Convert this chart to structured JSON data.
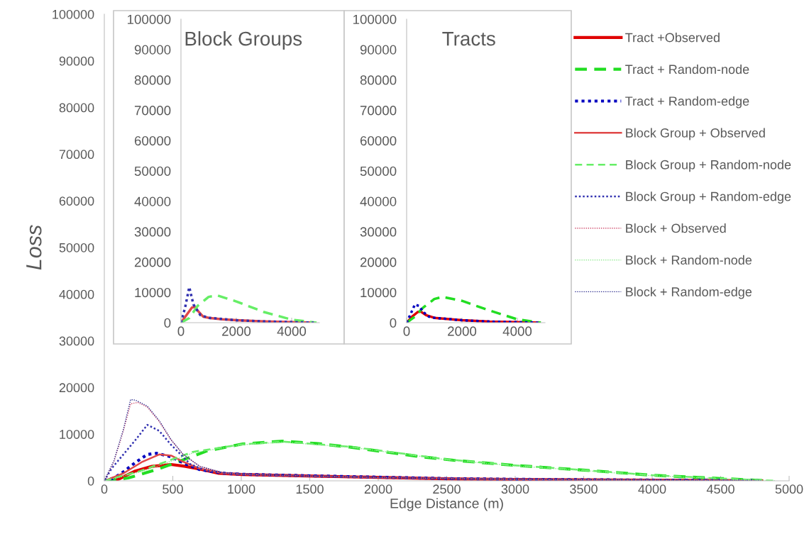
{
  "chart_data": [
    {
      "type": "line",
      "xlabel": "Edge Distance (m)",
      "ylabel": "Loss",
      "xlim": [
        0,
        5000
      ],
      "ylim": [
        0,
        100000
      ],
      "xticks": [
        0,
        500,
        1000,
        1500,
        2000,
        2500,
        3000,
        3500,
        4000,
        4500,
        5000
      ],
      "yticks": [
        0,
        10000,
        20000,
        30000,
        40000,
        50000,
        60000,
        70000,
        80000,
        90000,
        100000
      ],
      "legend": "top right",
      "series": [
        {
          "name": "Tract +Observed",
          "color": "#e00000",
          "line_style": "solid",
          "x": [
            0,
            105,
            226,
            348,
            488,
            592,
            697,
            836,
            1010,
            1533,
            2055,
            2561,
            3000,
            3500,
            4000,
            4500,
            4800
          ],
          "values": [
            0,
            350,
            2100,
            3100,
            3500,
            3100,
            2500,
            1600,
            1350,
            1000,
            700,
            400,
            300,
            200,
            150,
            80,
            0
          ]
        },
        {
          "name": "Tract + Random-node",
          "color": "#22dd22",
          "line_style": "dashed",
          "x": [
            0,
            174,
            383,
            523,
            749,
            1010,
            1300,
            1550,
            1800,
            2050,
            2300,
            2550,
            3000,
            3500,
            4000,
            4500,
            4850
          ],
          "values": [
            0,
            600,
            2400,
            3900,
            6400,
            7900,
            8500,
            8000,
            7200,
            6200,
            5200,
            4400,
            3300,
            2300,
            1200,
            500,
            0
          ]
        },
        {
          "name": "Tract + Random-edge",
          "color": "#0000c0",
          "line_style": "dotted",
          "x": [
            0,
            70,
            139,
            226,
            314,
            383,
            488,
            592,
            697,
            871,
            1010,
            1533,
            2055,
            2561,
            3000,
            3500,
            4000,
            4500,
            4800
          ],
          "values": [
            0,
            600,
            1900,
            3900,
            5650,
            5900,
            5150,
            3600,
            2400,
            1600,
            1400,
            1050,
            750,
            450,
            330,
            230,
            160,
            90,
            0
          ]
        },
        {
          "name": "Block Group + Observed",
          "color": "#e04848",
          "line_style": "solid",
          "x": [
            0,
            139,
            279,
            401,
            488,
            575,
            697,
            871,
            1010,
            1533,
            2055,
            2561,
            3000,
            4000,
            4800
          ],
          "values": [
            0,
            1600,
            4100,
            5650,
            5400,
            4100,
            2600,
            1600,
            1400,
            1000,
            700,
            450,
            350,
            180,
            0
          ]
        },
        {
          "name": "Block Group + Random-node",
          "color": "#66ee66",
          "line_style": "dashed",
          "x": [
            0,
            261,
            645,
            1000,
            1300,
            1800,
            2500,
            3000,
            3500,
            4000,
            4500,
            4900
          ],
          "values": [
            0,
            2100,
            6200,
            7800,
            8400,
            7300,
            4600,
            3300,
            2300,
            1200,
            500,
            0
          ]
        },
        {
          "name": "Block Group + Random-edge",
          "color": "#3030b0",
          "line_style": "dotted",
          "x": [
            0,
            52,
            139,
            226,
            314,
            401,
            488,
            627,
            749,
            923,
            1010,
            1533,
            2055,
            2561,
            3000,
            4000,
            4800
          ],
          "values": [
            0,
            2600,
            5650,
            8700,
            12000,
            10700,
            7700,
            3600,
            2100,
            1600,
            1450,
            1000,
            700,
            450,
            350,
            180,
            0
          ]
        },
        {
          "name": "Block + Observed",
          "color": "#d05070",
          "line_style": "dotted",
          "x": [
            0,
            70,
            139,
            192,
            244,
            314,
            401,
            488,
            575,
            697,
            871,
            1010,
            1533,
            2055,
            2561,
            3000,
            4000,
            4800
          ],
          "values": [
            0,
            4100,
            10700,
            16500,
            16800,
            15800,
            12700,
            8700,
            5650,
            3100,
            1700,
            1400,
            1000,
            700,
            450,
            350,
            180,
            0
          ]
        },
        {
          "name": "Block + Random-node",
          "color": "#88e888",
          "line_style": "dotted",
          "x": [
            0,
            300,
            650,
            1000,
            1300,
            1800,
            2500,
            3000,
            3500,
            4000,
            4500,
            4900
          ],
          "values": [
            0,
            2200,
            6000,
            7700,
            8300,
            7200,
            4500,
            3200,
            2200,
            1100,
            450,
            0
          ]
        },
        {
          "name": "Block + Random-edge",
          "color": "#303090",
          "line_style": "dotted",
          "x": [
            0,
            70,
            139,
            192,
            226,
            314,
            401,
            488,
            575,
            697,
            871,
            1010,
            1533,
            2055,
            2561,
            3000,
            4000,
            4800
          ],
          "values": [
            0,
            4300,
            11000,
            17400,
            17300,
            16000,
            12900,
            8800,
            5700,
            3100,
            1700,
            1400,
            1000,
            700,
            450,
            350,
            180,
            0
          ]
        }
      ]
    },
    {
      "type": "line",
      "title": "Block Groups",
      "xlim": [
        0,
        5000
      ],
      "ylim": [
        0,
        100000
      ],
      "xticks": [
        0,
        2000,
        4000
      ],
      "yticks": [
        0,
        10000,
        20000,
        30000,
        40000,
        50000,
        60000,
        70000,
        80000,
        90000,
        100000
      ],
      "series": [
        {
          "color": "#e04848",
          "line_style": "solid",
          "x": [
            0,
            200,
            400,
            500,
            600,
            800,
            1000,
            1500,
            2000,
            3000,
            4000,
            4800
          ],
          "values": [
            0,
            2500,
            5000,
            5200,
            4000,
            2000,
            1600,
            1100,
            800,
            400,
            200,
            0
          ]
        },
        {
          "color": "#66ee66",
          "line_style": "dashed",
          "x": [
            0,
            300,
            600,
            1000,
            1300,
            2000,
            3000,
            4000,
            4900
          ],
          "values": [
            0,
            1500,
            5500,
            8500,
            9000,
            7000,
            3500,
            1000,
            0
          ]
        },
        {
          "color": "#3030b0",
          "line_style": "dotted",
          "x": [
            0,
            150,
            300,
            450,
            700,
            1000,
            2000,
            3000,
            4000,
            4800
          ],
          "values": [
            0,
            5000,
            11700,
            6000,
            2500,
            1600,
            800,
            400,
            200,
            0
          ]
        }
      ]
    },
    {
      "type": "line",
      "title": "Tracts",
      "xlim": [
        0,
        5000
      ],
      "ylim": [
        0,
        100000
      ],
      "xticks": [
        0,
        2000,
        4000
      ],
      "yticks": [
        0,
        10000,
        20000,
        30000,
        40000,
        50000,
        60000,
        70000,
        80000,
        90000,
        100000
      ],
      "series": [
        {
          "color": "#e00000",
          "line_style": "solid",
          "x": [
            0,
            200,
            400,
            500,
            700,
            1000,
            2000,
            3000,
            4000,
            4800
          ],
          "values": [
            0,
            2000,
            3500,
            3700,
            2500,
            1600,
            800,
            350,
            150,
            0
          ]
        },
        {
          "color": "#22dd22",
          "line_style": "dashed",
          "x": [
            0,
            300,
            600,
            1000,
            1300,
            2000,
            3000,
            4000,
            4850
          ],
          "values": [
            0,
            2000,
            5000,
            7800,
            8500,
            7200,
            4000,
            1100,
            0
          ]
        },
        {
          "color": "#0000c0",
          "line_style": "dotted",
          "x": [
            0,
            200,
            300,
            450,
            600,
            800,
            1000,
            2000,
            3000,
            4000,
            4800
          ],
          "values": [
            0,
            4000,
            6000,
            5500,
            3500,
            2000,
            1600,
            800,
            350,
            150,
            0
          ]
        }
      ]
    }
  ]
}
